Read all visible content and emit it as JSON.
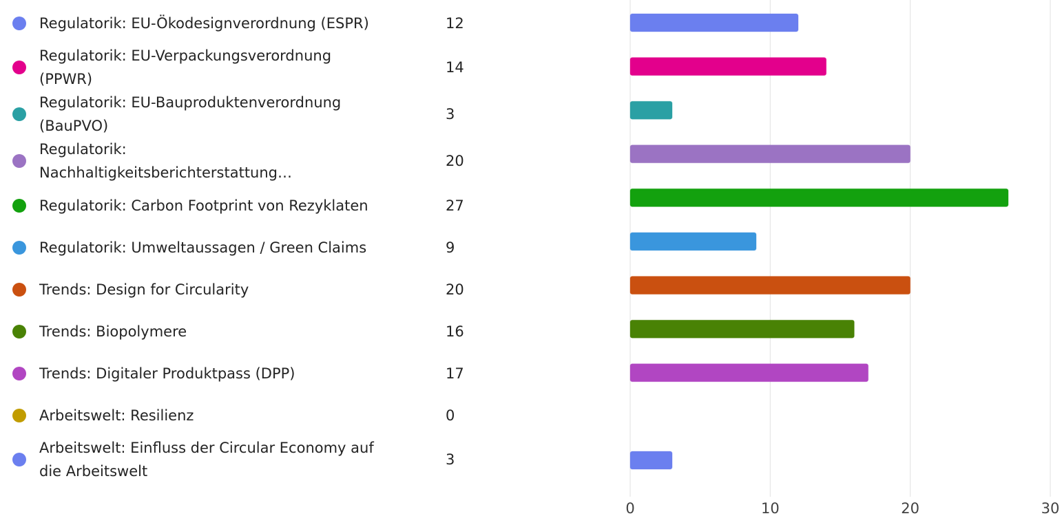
{
  "chart_data": {
    "type": "bar",
    "orientation": "horizontal",
    "categories": [
      "Regulatorik: EU-Ökodesignverordnung (ESPR)",
      "Regulatorik: EU-Verpackungsverordnung (PPWR)",
      "Regulatorik: EU-Bauproduktenverordnung (BauPVO)",
      "Regulatorik: Nachhaltigkeitsberichterstattung…",
      "Regulatorik: Carbon Footprint von Rezyklaten",
      "Regulatorik: Umweltaussagen / Green Claims",
      "Trends: Design for Circularity",
      "Trends: Biopolymere",
      "Trends: Digitaler Produktpass (DPP)",
      "Arbeitswelt: Resilienz",
      "Arbeitswelt: Einfluss der Circular Economy auf die Arbeitswelt"
    ],
    "values": [
      12,
      14,
      3,
      20,
      27,
      9,
      20,
      16,
      17,
      0,
      3
    ],
    "colors": [
      "#6b7fef",
      "#e3008c",
      "#2aa0a4",
      "#9b73c3",
      "#13a10e",
      "#3a96dd",
      "#ca5010",
      "#498205",
      "#b146c2",
      "#c19c00",
      "#6b7fef"
    ],
    "xlim": [
      0,
      30
    ],
    "xticks": [
      0,
      10,
      20,
      30
    ],
    "grid": true
  }
}
